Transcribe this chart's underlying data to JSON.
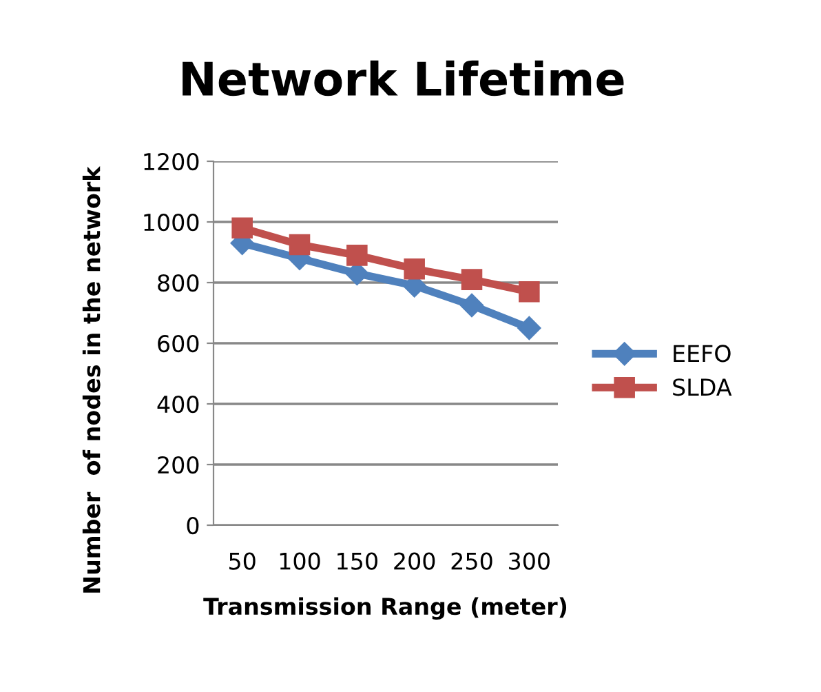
{
  "chart_data": {
    "type": "line",
    "title": "Network Lifetime",
    "xlabel": "Transmission Range (meter)",
    "ylabel": "Number  of nodes in the network",
    "categories": [
      "50",
      "100",
      "150",
      "200",
      "250",
      "300"
    ],
    "series": [
      {
        "name": "EEFO",
        "color": "#4f81bd",
        "marker": "diamond",
        "values": [
          930,
          880,
          830,
          790,
          725,
          650
        ]
      },
      {
        "name": "SLDA",
        "color": "#c0504d",
        "marker": "square",
        "values": [
          980,
          925,
          890,
          845,
          810,
          770
        ]
      }
    ],
    "ylim": [
      0,
      1200
    ],
    "yticks": [
      0,
      200,
      400,
      600,
      800,
      1000,
      1200
    ],
    "grid": "y",
    "legend": "right",
    "line_style": "solid"
  }
}
